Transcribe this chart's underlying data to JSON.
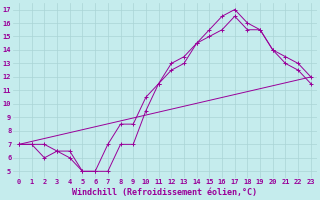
{
  "xlabel": "Windchill (Refroidissement éolien,°C)",
  "ylabel": "",
  "xlim": [
    -0.5,
    23.5
  ],
  "ylim": [
    4.5,
    17.5
  ],
  "xticks": [
    0,
    1,
    2,
    3,
    4,
    5,
    6,
    7,
    8,
    9,
    10,
    11,
    12,
    13,
    14,
    15,
    16,
    17,
    18,
    19,
    20,
    21,
    22,
    23
  ],
  "yticks": [
    5,
    6,
    7,
    8,
    9,
    10,
    11,
    12,
    13,
    14,
    15,
    16,
    17
  ],
  "background_color": "#c5eced",
  "grid_color": "#aad4d5",
  "line_color": "#990099",
  "lines": [
    {
      "x": [
        0,
        1,
        2,
        3,
        4,
        5,
        6,
        7,
        8,
        9,
        10,
        11,
        12,
        13,
        14,
        15,
        16,
        17,
        18,
        19,
        20,
        21,
        22,
        23
      ],
      "y": [
        7,
        7,
        7,
        6.5,
        6.5,
        5,
        5,
        7,
        8.5,
        8.5,
        10.5,
        11.5,
        13,
        13.5,
        14.5,
        15.5,
        16.5,
        17,
        16,
        15.5,
        14,
        13.5,
        13,
        12
      ],
      "marker": true
    },
    {
      "x": [
        0,
        1,
        2,
        3,
        4,
        5,
        6,
        7,
        8,
        9,
        10,
        11,
        12,
        13,
        14,
        15,
        16,
        17,
        18,
        19,
        20,
        21,
        22,
        23
      ],
      "y": [
        7,
        7,
        6,
        6.5,
        6,
        5,
        5,
        5,
        7,
        7,
        9.5,
        11.5,
        12.5,
        13,
        14.5,
        15,
        15.5,
        16.5,
        15.5,
        15.5,
        14,
        13,
        12.5,
        11.5
      ],
      "marker": true
    },
    {
      "x": [
        0,
        23
      ],
      "y": [
        7,
        12
      ],
      "marker": false
    }
  ],
  "tick_fontsize": 5,
  "xlabel_fontsize": 6,
  "linewidth": 0.7,
  "markersize": 2.5
}
